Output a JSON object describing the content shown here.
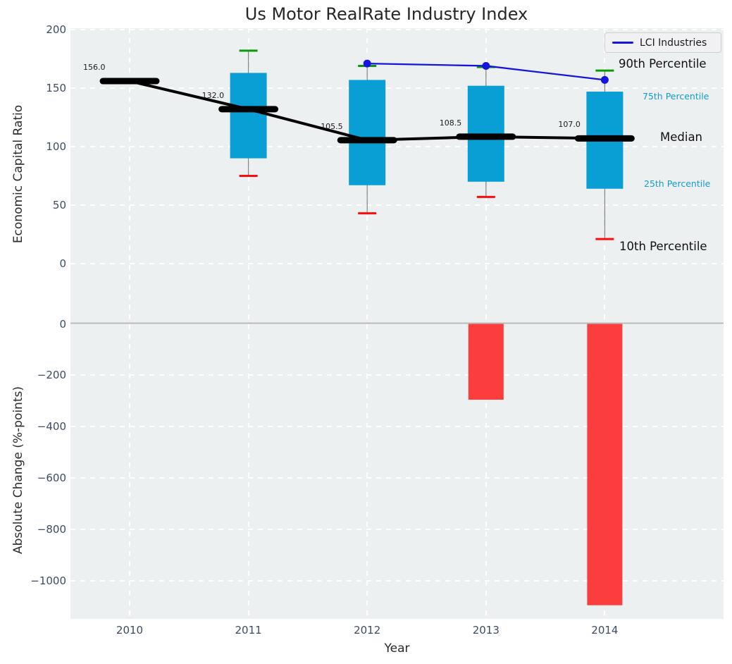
{
  "title": "Us Motor RealRate Industry Index",
  "legend": {
    "items": [
      {
        "label": "LCI Industries",
        "color": "#1515dd"
      }
    ]
  },
  "annotations": {
    "p90": "90th Percentile",
    "p75": "75th Percentile",
    "median": "Median",
    "p25": "25th Percentile",
    "p10": "10th Percentile"
  },
  "colors": {
    "plot_bg": "#edf0f1",
    "grid": "#ffffff",
    "tick_text": "#3d4c63",
    "box_fill": "#0a9fd4",
    "median_line": "#000000",
    "lci_line": "#1515dd",
    "cap_high": "#0a9a0a",
    "cap_low": "#fb0d0d",
    "whisker": "#888888",
    "bar_negative": "#fb3d3d",
    "zero_line": "#b5b5b5",
    "annotation_cyan": "#149ccc",
    "annotation_black": "#111111"
  },
  "chart_data": [
    {
      "type": "box",
      "panel": "top",
      "title": "Us Motor RealRate Industry Index",
      "xlabel": "Year",
      "ylabel": "Economic Capital Ratio",
      "categories": [
        "2010",
        "2011",
        "2012",
        "2013",
        "2014"
      ],
      "series": [
        {
          "name": "90th Percentile",
          "values": [
            null,
            182,
            169,
            168,
            165
          ]
        },
        {
          "name": "75th Percentile",
          "values": [
            null,
            163,
            157,
            152,
            147
          ]
        },
        {
          "name": "Median",
          "values": [
            156,
            132,
            105.5,
            108.5,
            107
          ]
        },
        {
          "name": "25th Percentile",
          "values": [
            null,
            90,
            67,
            70,
            64
          ]
        },
        {
          "name": "10th Percentile",
          "values": [
            null,
            75,
            43,
            57,
            21
          ]
        },
        {
          "name": "LCI Industries",
          "type": "line",
          "values": [
            null,
            null,
            171,
            169,
            157
          ]
        }
      ],
      "median_labels": [
        "156.0",
        "132.0",
        "105.5",
        "108.5",
        "107.0"
      ],
      "yticks": [
        {
          "v": 200,
          "label": "200"
        },
        {
          "v": 150,
          "label": "150"
        },
        {
          "v": 100,
          "label": "100"
        },
        {
          "v": 50,
          "label": "50"
        },
        {
          "v": 0,
          "label": "0"
        }
      ],
      "ylim": [
        -12,
        202
      ],
      "grid": true,
      "legend_position": "upper right"
    },
    {
      "type": "bar",
      "panel": "bottom",
      "xlabel": "Year",
      "ylabel": "Absolute Change (%-points)",
      "categories": [
        "2010",
        "2011",
        "2012",
        "2013",
        "2014"
      ],
      "values": [
        null,
        null,
        null,
        -295,
        -1095
      ],
      "yticks": [
        {
          "v": 0,
          "label": "0"
        },
        {
          "v": -200,
          "label": "−200"
        },
        {
          "v": -400,
          "label": "−400"
        },
        {
          "v": -600,
          "label": "−600"
        },
        {
          "v": -800,
          "label": "−800"
        },
        {
          "v": -1000,
          "label": "−1000"
        }
      ],
      "ylim": [
        -1155,
        115
      ],
      "grid": true
    }
  ]
}
